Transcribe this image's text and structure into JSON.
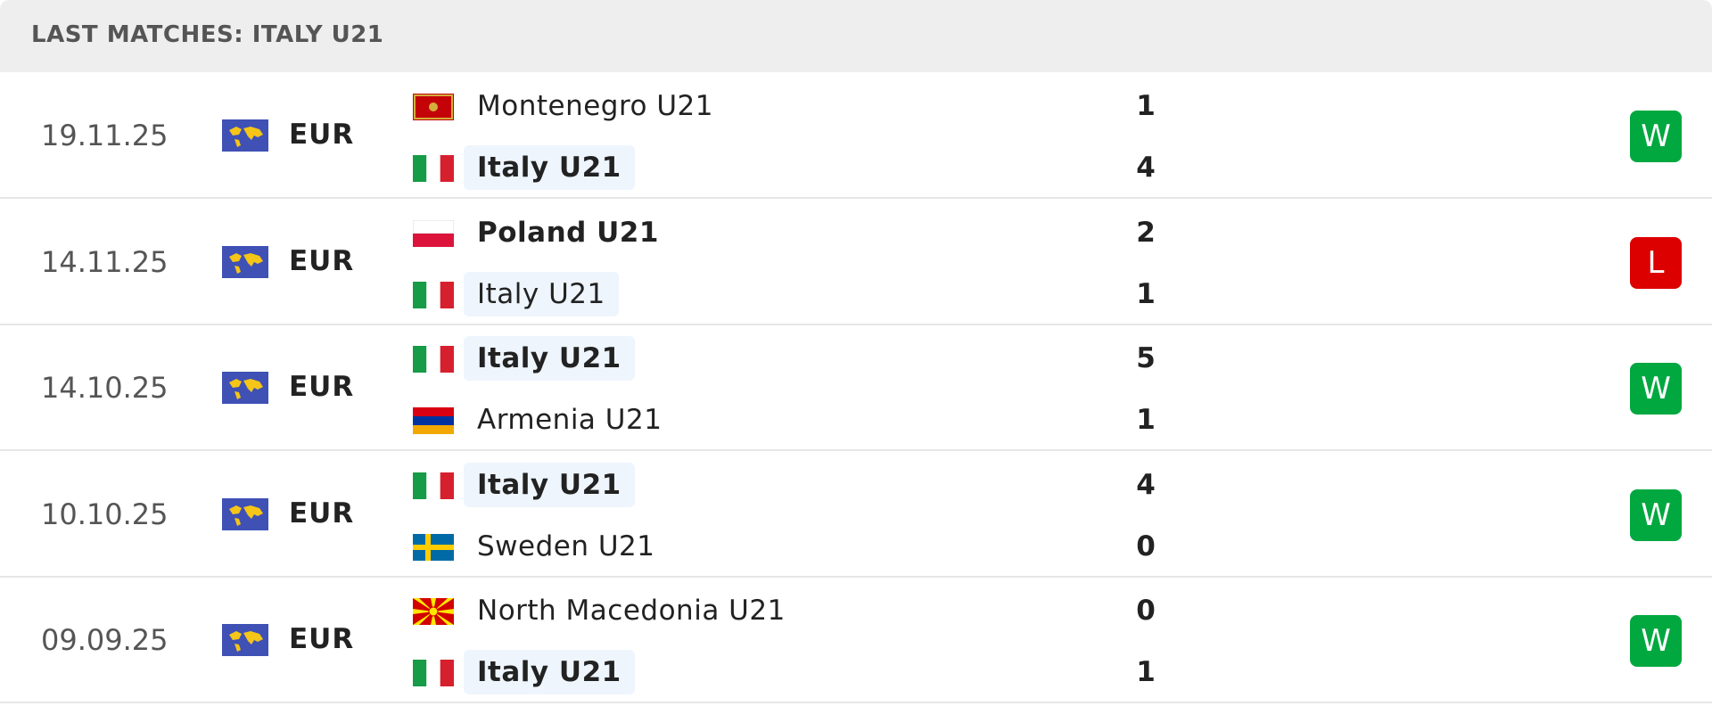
{
  "header": {
    "title": "LAST MATCHES: ITALY U21"
  },
  "matches": [
    {
      "date": "19.11.25",
      "competition": "EUR",
      "home": {
        "name": "Montenegro U21",
        "score": 1
      },
      "away": {
        "name": "Italy U21",
        "score": 4
      },
      "result": "W"
    },
    {
      "date": "14.11.25",
      "competition": "EUR",
      "home": {
        "name": "Poland U21",
        "score": 2
      },
      "away": {
        "name": "Italy U21",
        "score": 1
      },
      "result": "L"
    },
    {
      "date": "14.10.25",
      "competition": "EUR",
      "home": {
        "name": "Italy U21",
        "score": 5
      },
      "away": {
        "name": "Armenia U21",
        "score": 1
      },
      "result": "W"
    },
    {
      "date": "10.10.25",
      "competition": "EUR",
      "home": {
        "name": "Italy U21",
        "score": 4
      },
      "away": {
        "name": "Sweden U21",
        "score": 0
      },
      "result": "W"
    },
    {
      "date": "09.09.25",
      "competition": "EUR",
      "home": {
        "name": "North Macedonia U21",
        "score": 0
      },
      "away": {
        "name": "Italy U21",
        "score": 1
      },
      "result": "W"
    }
  ]
}
